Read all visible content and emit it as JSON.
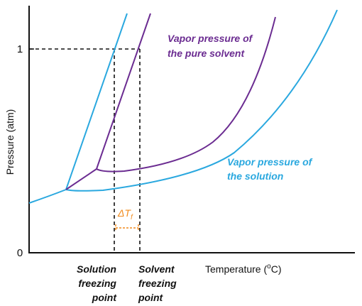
{
  "axes": {
    "y_title": "Pressure (atm)",
    "y_tick_one": "1",
    "y_tick_zero": "0",
    "x_title": "Temperature (",
    "x_title_degree": "o",
    "x_title_end": "C)"
  },
  "labels": {
    "pure_solvent_line1": "Vapor pressure of",
    "pure_solvent_line2": "the pure solvent",
    "solution_line1": "Vapor pressure of",
    "solution_line2": "the solution",
    "solution_fp_line1": "Solution",
    "solution_fp_line2": "freezing",
    "solution_fp_line3": "point",
    "solvent_fp_line1": "Solvent",
    "solvent_fp_line2": "freezing",
    "solvent_fp_line3": "point",
    "delta_main": "ΔT",
    "delta_sub": "f"
  },
  "colors": {
    "pure_solvent": "#6b2c91",
    "solution": "#2aa8df",
    "delta": "#f28c1e",
    "axes": "#111111"
  }
}
